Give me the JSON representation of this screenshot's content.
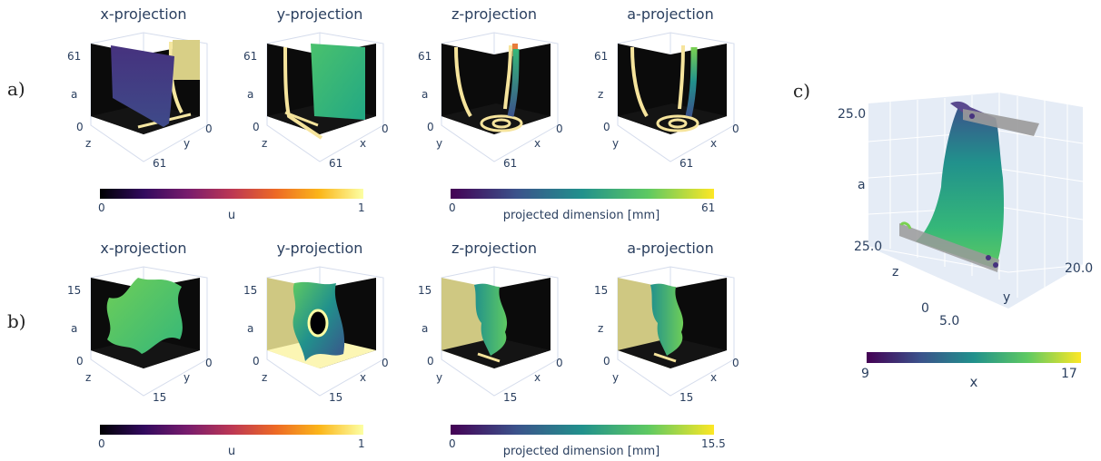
{
  "row_labels": {
    "a": "a)",
    "b": "b)",
    "c": "c)"
  },
  "row_a": {
    "titles": [
      "x-projection",
      "y-projection",
      "z-projection",
      "a-projection"
    ],
    "panels": [
      {
        "top": "61",
        "vertical": "a",
        "origin": "0",
        "left_axis": "z",
        "right_axis": "y",
        "right_zero": "0",
        "bottom": "61"
      },
      {
        "top": "61",
        "vertical": "a",
        "origin": "0",
        "left_axis": "z",
        "right_axis": "x",
        "right_zero": "0",
        "bottom": "61"
      },
      {
        "top": "61",
        "vertical": "a",
        "origin": "0",
        "left_axis": "y",
        "right_axis": "x",
        "right_zero": "0",
        "bottom": "61"
      },
      {
        "top": "61",
        "vertical": "z",
        "origin": "0",
        "left_axis": "y",
        "right_axis": "x",
        "right_zero": "0",
        "bottom": "61"
      }
    ],
    "cbar_u": {
      "min": "0",
      "max": "1",
      "label": "u"
    },
    "cbar_dim": {
      "min": "0",
      "max": "61",
      "label": "projected dimension [mm]"
    }
  },
  "row_b": {
    "titles": [
      "x-projection",
      "y-projection",
      "z-projection",
      "a-projection"
    ],
    "panels": [
      {
        "top": "15",
        "vertical": "a",
        "origin": "0",
        "left_axis": "z",
        "right_axis": "y",
        "right_zero": "0",
        "bottom": "15"
      },
      {
        "top": "15",
        "vertical": "a",
        "origin": "0",
        "left_axis": "z",
        "right_axis": "x",
        "right_zero": "0",
        "bottom": "15"
      },
      {
        "top": "15",
        "vertical": "a",
        "origin": "0",
        "left_axis": "y",
        "right_axis": "x",
        "right_zero": "0",
        "bottom": "15"
      },
      {
        "top": "15",
        "vertical": "z",
        "origin": "0",
        "left_axis": "y",
        "right_axis": "x",
        "right_zero": "0",
        "bottom": "15"
      }
    ],
    "cbar_u": {
      "min": "0",
      "max": "1",
      "label": "u"
    },
    "cbar_dim": {
      "min": "0",
      "max": "15.5",
      "label": "projected dimension [mm]"
    }
  },
  "panel_c": {
    "a_tick": "25.0",
    "a_label": "a",
    "z_tick": "25.0",
    "z_label": "z",
    "z_zero": "0",
    "y_low": "5.0",
    "y_label": "y",
    "y_high": "20.0",
    "cbar": {
      "min": "9",
      "max": "17",
      "label": "x"
    }
  },
  "colors": {
    "inferno": [
      "#000004",
      "#320a5e",
      "#781c6d",
      "#bc3754",
      "#ed6925",
      "#fbb61a",
      "#fcffa4"
    ],
    "viridis": [
      "#440154",
      "#3b528b",
      "#21918c",
      "#5ec962",
      "#fde725"
    ],
    "pane_bg": "#0a0a0a",
    "plot_bg": "#e5ecf6"
  }
}
